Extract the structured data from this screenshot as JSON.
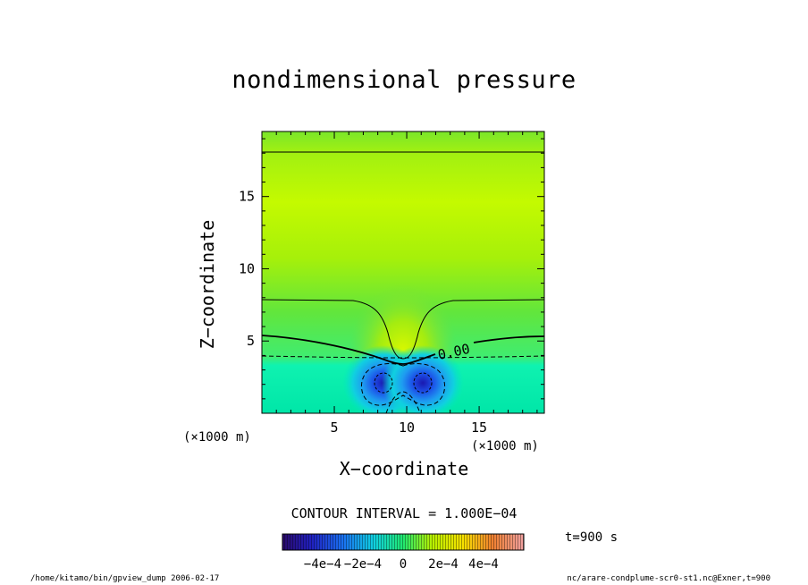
{
  "chart_data": {
    "type": "heatmap",
    "title": "nondimensional pressure",
    "xlabel": "X−coordinate",
    "ylabel": "Z−coordinate",
    "x_unit": "(×1000 m)",
    "z_unit": "(×1000 m)",
    "xlim": [
      0,
      19.5
    ],
    "ylim": [
      0,
      19.5
    ],
    "xticks": [
      5,
      10,
      15
    ],
    "yticks": [
      5,
      10,
      15
    ],
    "contour_label": "0.00",
    "contour_interval_text": "CONTOUR INTERVAL = 1.000E−04",
    "colorbar": {
      "range": [
        -0.0006,
        0.0006
      ],
      "tick_values": [
        -0.0004,
        -0.0002,
        0,
        0.0002,
        0.0004
      ],
      "tick_labels": [
        "−4e−4",
        "−2e−4",
        "0",
        "2e−4",
        "4e−4"
      ]
    },
    "time_label": "t=900 s"
  },
  "footer": {
    "left": "/home/kitamo/bin/gpview_dump  2006-02-17",
    "right": "nc/arare-condplume-scr0-st1.nc@Exner,t=900"
  },
  "colors": {
    "background": "#ffffff",
    "axis": "#000000"
  }
}
